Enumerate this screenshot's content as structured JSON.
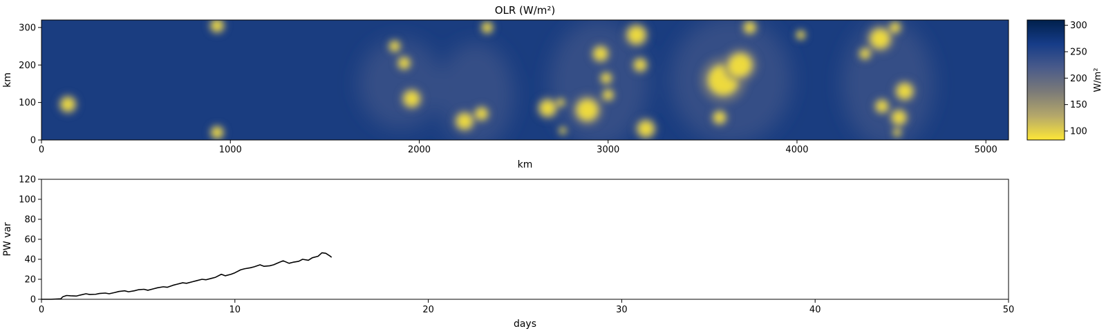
{
  "chart_data": [
    {
      "type": "heatmap",
      "title": "OLR (W/m²)",
      "xlabel": "km",
      "ylabel": "km",
      "xlim": [
        0,
        5120
      ],
      "ylim": [
        0,
        320
      ],
      "xticks": [
        "0",
        "1000",
        "2000",
        "3000",
        "4000",
        "5000"
      ],
      "yticks": [
        "0",
        "100",
        "200",
        "300"
      ],
      "colorbar": {
        "label": "W/m²",
        "range": [
          83,
          310
        ],
        "ticks": [
          "100",
          "150",
          "200",
          "250",
          "300"
        ],
        "colormap": "cividis",
        "colors": [
          "#fde737",
          "#b5a86a",
          "#7c7b78",
          "#4a5b8a",
          "#163c88",
          "#00204c"
        ]
      },
      "low_olr_regions": [
        {
          "x": 140,
          "y": 95,
          "r": 35
        },
        {
          "x": 930,
          "y": 305,
          "r": 30
        },
        {
          "x": 930,
          "y": 20,
          "r": 28
        },
        {
          "x": 1870,
          "y": 250,
          "r": 25
        },
        {
          "x": 1920,
          "y": 205,
          "r": 28
        },
        {
          "x": 1960,
          "y": 110,
          "r": 40
        },
        {
          "x": 2240,
          "y": 50,
          "r": 40
        },
        {
          "x": 2330,
          "y": 70,
          "r": 30
        },
        {
          "x": 2360,
          "y": 300,
          "r": 25
        },
        {
          "x": 2680,
          "y": 85,
          "r": 40
        },
        {
          "x": 2750,
          "y": 100,
          "r": 18
        },
        {
          "x": 2760,
          "y": 25,
          "r": 16
        },
        {
          "x": 2890,
          "y": 80,
          "r": 55
        },
        {
          "x": 2960,
          "y": 230,
          "r": 35
        },
        {
          "x": 2990,
          "y": 165,
          "r": 25
        },
        {
          "x": 3000,
          "y": 120,
          "r": 25
        },
        {
          "x": 3150,
          "y": 280,
          "r": 45
        },
        {
          "x": 3170,
          "y": 200,
          "r": 30
        },
        {
          "x": 3200,
          "y": 30,
          "r": 40
        },
        {
          "x": 3610,
          "y": 160,
          "r": 80
        },
        {
          "x": 3700,
          "y": 200,
          "r": 60
        },
        {
          "x": 3750,
          "y": 300,
          "r": 28
        },
        {
          "x": 3590,
          "y": 60,
          "r": 30
        },
        {
          "x": 4020,
          "y": 280,
          "r": 20
        },
        {
          "x": 4360,
          "y": 230,
          "r": 25
        },
        {
          "x": 4440,
          "y": 270,
          "r": 50
        },
        {
          "x": 4520,
          "y": 300,
          "r": 25
        },
        {
          "x": 4570,
          "y": 130,
          "r": 40
        },
        {
          "x": 4540,
          "y": 60,
          "r": 35
        },
        {
          "x": 4450,
          "y": 90,
          "r": 30
        },
        {
          "x": 4530,
          "y": 20,
          "r": 18
        }
      ]
    },
    {
      "type": "line",
      "xlabel": "days",
      "ylabel": "PW var",
      "xlim": [
        0,
        50
      ],
      "ylim": [
        0,
        120
      ],
      "xticks": [
        "0",
        "10",
        "20",
        "30",
        "40",
        "50"
      ],
      "yticks": [
        "0",
        "20",
        "40",
        "60",
        "80",
        "100",
        "120"
      ],
      "series": [
        {
          "color": "#000000",
          "x": [
            0,
            0.5,
            1.0,
            1.1,
            1.3,
            1.5,
            1.8,
            2.0,
            2.3,
            2.5,
            2.8,
            3.0,
            3.3,
            3.5,
            3.8,
            4.0,
            4.3,
            4.5,
            4.8,
            5.0,
            5.3,
            5.5,
            5.8,
            6.0,
            6.3,
            6.5,
            6.8,
            7.0,
            7.3,
            7.5,
            7.8,
            8.0,
            8.3,
            8.5,
            8.8,
            9.0,
            9.3,
            9.5,
            9.8,
            10.0,
            10.3,
            10.5,
            10.8,
            11.0,
            11.3,
            11.5,
            11.8,
            12.0,
            12.3,
            12.5,
            12.8,
            13.0,
            13.3,
            13.5,
            13.8,
            14.0,
            14.3,
            14.5,
            14.7,
            14.9,
            15.0
          ],
          "y": [
            0,
            0,
            0.5,
            2.5,
            3.8,
            3.5,
            3.2,
            4.2,
            5.5,
            4.8,
            5.0,
            5.8,
            6.2,
            5.5,
            6.8,
            7.8,
            8.5,
            7.5,
            8.5,
            9.5,
            10.0,
            9.0,
            10.5,
            11.5,
            12.5,
            12.0,
            14.0,
            15.0,
            16.5,
            16.0,
            17.5,
            18.5,
            20.0,
            19.5,
            21.0,
            22.0,
            25.0,
            23.5,
            25.0,
            26.5,
            29.5,
            30.5,
            31.5,
            32.5,
            34.5,
            33.0,
            33.5,
            34.5,
            37.0,
            38.5,
            36.0,
            37.0,
            38.0,
            40.0,
            39.0,
            41.5,
            43.0,
            46.5,
            46.0,
            43.5,
            42.0
          ]
        }
      ]
    }
  ]
}
